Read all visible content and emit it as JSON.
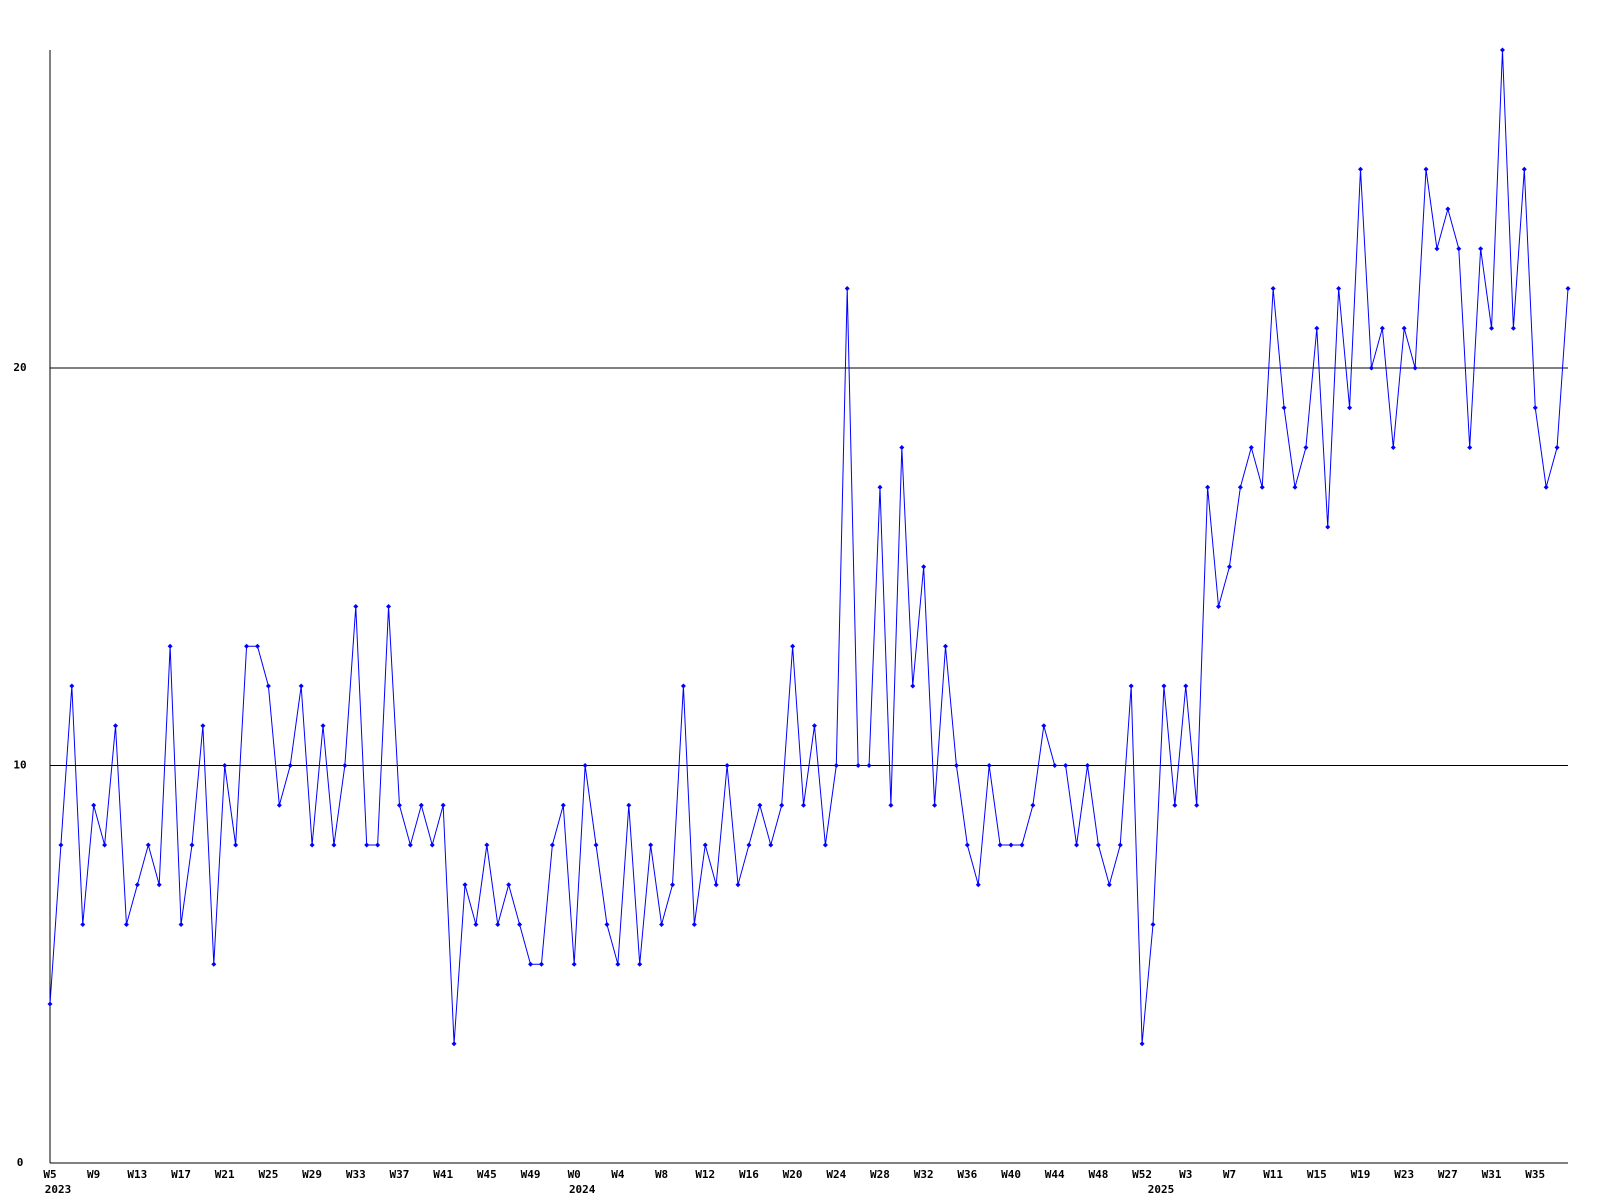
{
  "chart_data": {
    "type": "line",
    "categories": [
      "W5",
      null,
      null,
      null,
      "W9",
      null,
      null,
      null,
      "W13",
      null,
      null,
      null,
      "W17",
      null,
      null,
      null,
      "W21",
      null,
      null,
      null,
      "W25",
      null,
      null,
      null,
      "W29",
      null,
      null,
      null,
      "W33",
      null,
      null,
      null,
      "W37",
      null,
      null,
      null,
      "W41",
      null,
      null,
      null,
      "W45",
      null,
      null,
      null,
      "W49",
      null,
      null,
      null,
      "W0",
      null,
      null,
      null,
      "W4",
      null,
      null,
      null,
      "W8",
      null,
      null,
      null,
      "W12",
      null,
      null,
      null,
      "W16",
      null,
      null,
      null,
      "W20",
      null,
      null,
      null,
      "W24",
      null,
      null,
      null,
      "W28",
      null,
      null,
      null,
      "W32",
      null,
      null,
      null,
      "W36",
      null,
      null,
      null,
      "W40",
      null,
      null,
      null,
      "W44",
      null,
      null,
      null,
      "W48",
      null,
      null,
      null,
      "W52",
      null,
      null,
      null,
      "W3",
      null,
      null,
      null,
      "W7",
      null,
      null,
      null,
      "W11",
      null,
      null,
      null,
      "W15",
      null,
      null,
      null,
      "W19",
      null,
      null,
      null,
      "W23",
      null,
      null,
      null,
      "W27",
      null,
      null,
      null,
      "W31",
      null,
      null,
      null,
      "W35",
      null,
      null,
      null
    ],
    "x_year_labels": [
      {
        "value": 0,
        "label": "2023"
      },
      {
        "value": 48,
        "label": "2024"
      },
      {
        "value": 101,
        "label": "2025"
      }
    ],
    "values": [
      4,
      8,
      12,
      6,
      9,
      8,
      11,
      6,
      7,
      8,
      7,
      13,
      6,
      8,
      11,
      5,
      10,
      8,
      13,
      13,
      12,
      9,
      10,
      12,
      8,
      11,
      8,
      10,
      14,
      8,
      8,
      14,
      9,
      8,
      9,
      8,
      9,
      3,
      7,
      6,
      8,
      6,
      7,
      6,
      5,
      5,
      8,
      9,
      5,
      10,
      8,
      6,
      5,
      9,
      5,
      8,
      6,
      7,
      12,
      6,
      8,
      7,
      10,
      7,
      8,
      9,
      8,
      9,
      13,
      9,
      11,
      8,
      10,
      22,
      10,
      10,
      17,
      9,
      18,
      12,
      15,
      9,
      13,
      10,
      8,
      7,
      10,
      8,
      8,
      8,
      9,
      11,
      10,
      10,
      8,
      10,
      8,
      7,
      8,
      12,
      3,
      6,
      12,
      9,
      12,
      9,
      17,
      14,
      15,
      17,
      18,
      17,
      22,
      19,
      17,
      18,
      21,
      16,
      22,
      19,
      25,
      20,
      21,
      18,
      21,
      20,
      25,
      23,
      24,
      23,
      18,
      23,
      21,
      28,
      21,
      25,
      19,
      17,
      18,
      22
    ],
    "color": "#0000ff",
    "ylim": [
      0,
      28
    ],
    "yticks": [
      0,
      10,
      20
    ],
    "grid": true
  }
}
